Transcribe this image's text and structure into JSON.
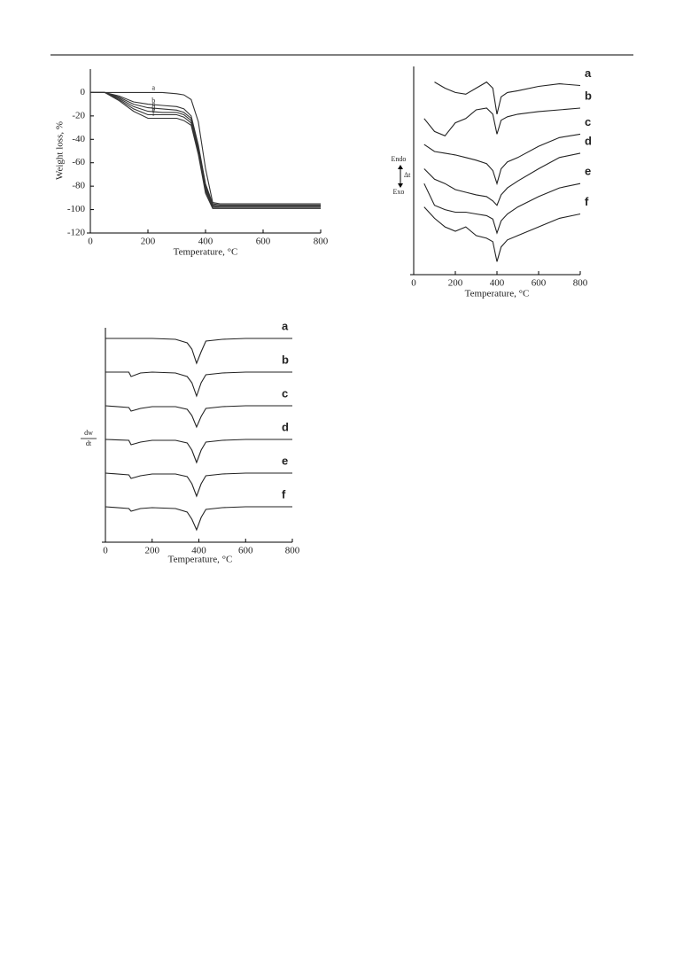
{
  "chart_data": [
    {
      "type": "line",
      "xlabel": "Temperature, °C",
      "ylabel": "Weight loss, %",
      "color": "#333",
      "x": [
        0,
        50,
        100,
        150,
        200,
        250,
        300,
        325,
        350,
        375,
        400,
        425,
        450,
        500,
        600,
        700,
        800
      ],
      "xlim": [
        0,
        800
      ],
      "xticks": [
        0,
        200,
        400,
        600,
        800
      ],
      "ylim": [
        -120,
        20
      ],
      "yticks": [
        0,
        -20,
        -40,
        -60,
        -80,
        -100,
        -120
      ],
      "series": [
        {
          "name": "a",
          "values": [
            0,
            0,
            0,
            0,
            0,
            0,
            -1,
            -2,
            -6,
            -25,
            -65,
            -94,
            -95,
            -95,
            -95,
            -95,
            -95
          ]
        },
        {
          "name": "b",
          "values": [
            0,
            0,
            -3,
            -8,
            -10,
            -11,
            -12,
            -14,
            -20,
            -45,
            -78,
            -95,
            -96,
            -96,
            -96,
            -96,
            -96
          ]
        },
        {
          "name": "c",
          "values": [
            0,
            0,
            -4,
            -10,
            -13,
            -14,
            -15,
            -17,
            -22,
            -47,
            -80,
            -96,
            -97,
            -97,
            -97,
            -97,
            -97
          ]
        },
        {
          "name": "d",
          "values": [
            0,
            0,
            -5,
            -12,
            -16,
            -17,
            -17,
            -19,
            -24,
            -49,
            -82,
            -97,
            -98,
            -98,
            -98,
            -98,
            -98
          ]
        },
        {
          "name": "e",
          "values": [
            0,
            0,
            -6,
            -14,
            -19,
            -19,
            -19,
            -21,
            -26,
            -51,
            -84,
            -98,
            -98,
            -98,
            -98,
            -98,
            -98
          ]
        },
        {
          "name": "f",
          "values": [
            0,
            0,
            -7,
            -16,
            -22,
            -22,
            -22,
            -24,
            -28,
            -53,
            -86,
            -99,
            -99,
            -99,
            -99,
            -99,
            -99
          ]
        }
      ]
    },
    {
      "type": "line",
      "xlabel": "Temperature, °C",
      "ylabel_top": "Endo",
      "ylabel_mid": "Δt",
      "ylabel_bottom": "Exo",
      "color": "#222",
      "x": [
        50,
        100,
        150,
        200,
        250,
        300,
        350,
        380,
        400,
        420,
        450,
        500,
        600,
        700,
        800
      ],
      "xlim": [
        0,
        800
      ],
      "xticks": [
        0,
        200,
        400,
        600,
        800
      ],
      "ylim": [
        0,
        240
      ],
      "series": [
        {
          "name": "a",
          "values": [
            null,
            222,
            215,
            210,
            208,
            215,
            222,
            215,
            185,
            205,
            210,
            212,
            217,
            220,
            218
          ]
        },
        {
          "name": "b",
          "values": [
            180,
            165,
            160,
            175,
            180,
            190,
            192,
            185,
            162,
            178,
            182,
            185,
            188,
            190,
            192
          ]
        },
        {
          "name": "c",
          "values": [
            150,
            142,
            140,
            138,
            135,
            132,
            128,
            120,
            105,
            122,
            130,
            135,
            148,
            158,
            162
          ]
        },
        {
          "name": "d",
          "values": [
            122,
            110,
            105,
            98,
            95,
            92,
            90,
            85,
            80,
            92,
            100,
            108,
            122,
            135,
            140
          ]
        },
        {
          "name": "e",
          "values": [
            105,
            80,
            75,
            72,
            72,
            70,
            68,
            64,
            48,
            62,
            70,
            78,
            90,
            100,
            105
          ]
        },
        {
          "name": "f",
          "values": [
            78,
            65,
            55,
            50,
            55,
            45,
            42,
            38,
            15,
            32,
            40,
            45,
            55,
            65,
            70
          ]
        }
      ]
    },
    {
      "type": "line",
      "xlabel": "Temperature, °C",
      "ylabel_numerator": "dw",
      "ylabel_denominator": "dt",
      "color": "#222",
      "x": [
        0,
        100,
        110,
        150,
        200,
        300,
        350,
        370,
        390,
        410,
        430,
        500,
        600,
        700,
        800
      ],
      "xlim": [
        0,
        800
      ],
      "xticks": [
        0,
        200,
        400,
        600,
        800
      ],
      "ylim": [
        0,
        242
      ],
      "series": [
        {
          "name": "a",
          "values": [
            230,
            230,
            230,
            230,
            230,
            229,
            225,
            218,
            202,
            215,
            227,
            229,
            230,
            230,
            230
          ]
        },
        {
          "name": "b",
          "values": [
            192,
            192,
            187,
            191,
            192,
            191,
            187,
            180,
            165,
            180,
            189,
            191,
            192,
            192,
            192
          ]
        },
        {
          "name": "c",
          "values": [
            154,
            152,
            148,
            151,
            153,
            153,
            150,
            143,
            130,
            142,
            151,
            153,
            154,
            154,
            154
          ]
        },
        {
          "name": "d",
          "values": [
            116,
            115,
            110,
            113,
            115,
            115,
            112,
            104,
            90,
            104,
            113,
            115,
            116,
            116,
            116
          ]
        },
        {
          "name": "e",
          "values": [
            78,
            76,
            72,
            75,
            77,
            77,
            74,
            66,
            52,
            66,
            75,
            77,
            78,
            78,
            78
          ]
        },
        {
          "name": "f",
          "values": [
            40,
            38,
            35,
            38,
            39,
            38,
            34,
            26,
            14,
            28,
            37,
            39,
            40,
            40,
            40
          ]
        }
      ]
    }
  ]
}
